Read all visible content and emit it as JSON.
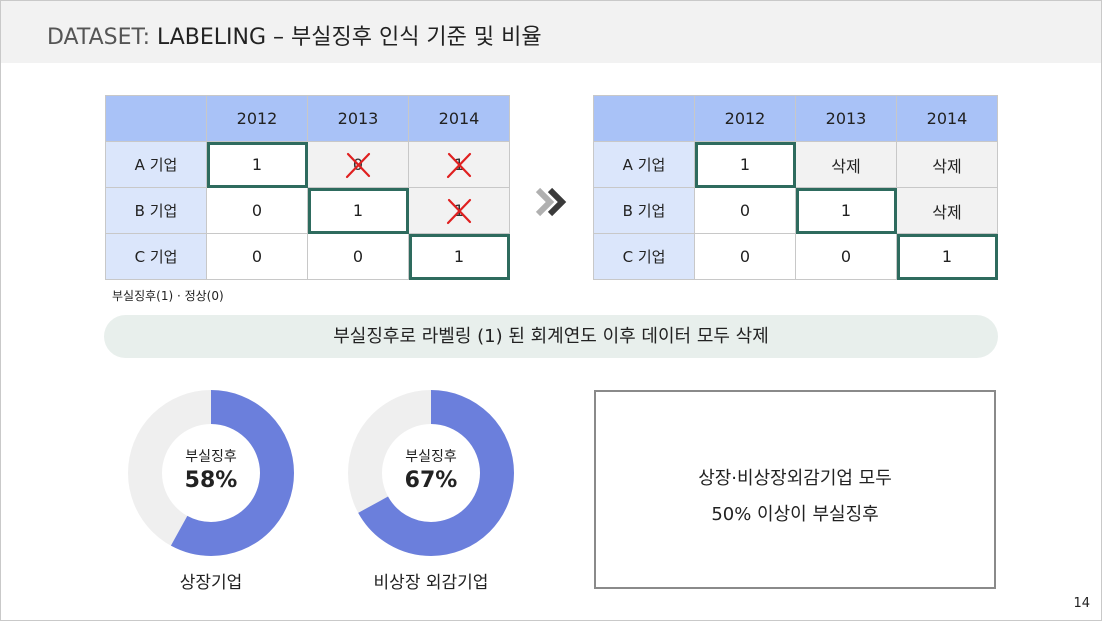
{
  "header": {
    "lead": "DATASET: ",
    "title": "LABELING – 부실징후 인식 기준 및 비율"
  },
  "left_table": {
    "columns": [
      "",
      "2012",
      "2013",
      "2014"
    ],
    "rows": [
      {
        "label": "A 기업",
        "cells": [
          "1",
          "0",
          "1"
        ]
      },
      {
        "label": "B 기업",
        "cells": [
          "0",
          "1",
          "1"
        ]
      },
      {
        "label": "C 기업",
        "cells": [
          "0",
          "0",
          "1"
        ]
      }
    ]
  },
  "legend_note": "부실징후(1) · 정상(0)",
  "right_table": {
    "columns": [
      "",
      "2012",
      "2013",
      "2014"
    ],
    "rows": [
      {
        "label": "A 기업",
        "cells": [
          "1",
          "삭제",
          "삭제"
        ]
      },
      {
        "label": "B 기업",
        "cells": [
          "0",
          "1",
          "삭제"
        ]
      },
      {
        "label": "C 기업",
        "cells": [
          "0",
          "0",
          "1"
        ]
      }
    ]
  },
  "banner": "부실징후로 라벨링 (1) 된 회계연도 이후 데이터 모두 삭제",
  "donuts": [
    {
      "label": "부실징후",
      "value_text": "58%",
      "fraction": 0.58,
      "caption": "상장기업"
    },
    {
      "label": "부실징후",
      "value_text": "67%",
      "fraction": 0.67,
      "caption": "비상장 외감기업"
    }
  ],
  "summary": {
    "line1": "상장·비상장외감기업 모두",
    "line2": "50% 이상이 부실징후"
  },
  "page_number": "14",
  "colors": {
    "header_cell": "#a9c2f7",
    "row_label_cell": "#dbe6fb",
    "highlight_border": "#2e6b5e",
    "donut_fill": "#6b7fdc",
    "donut_track": "#efefef",
    "cross_mark": "#e02020",
    "banner_bg": "#e8efec"
  }
}
